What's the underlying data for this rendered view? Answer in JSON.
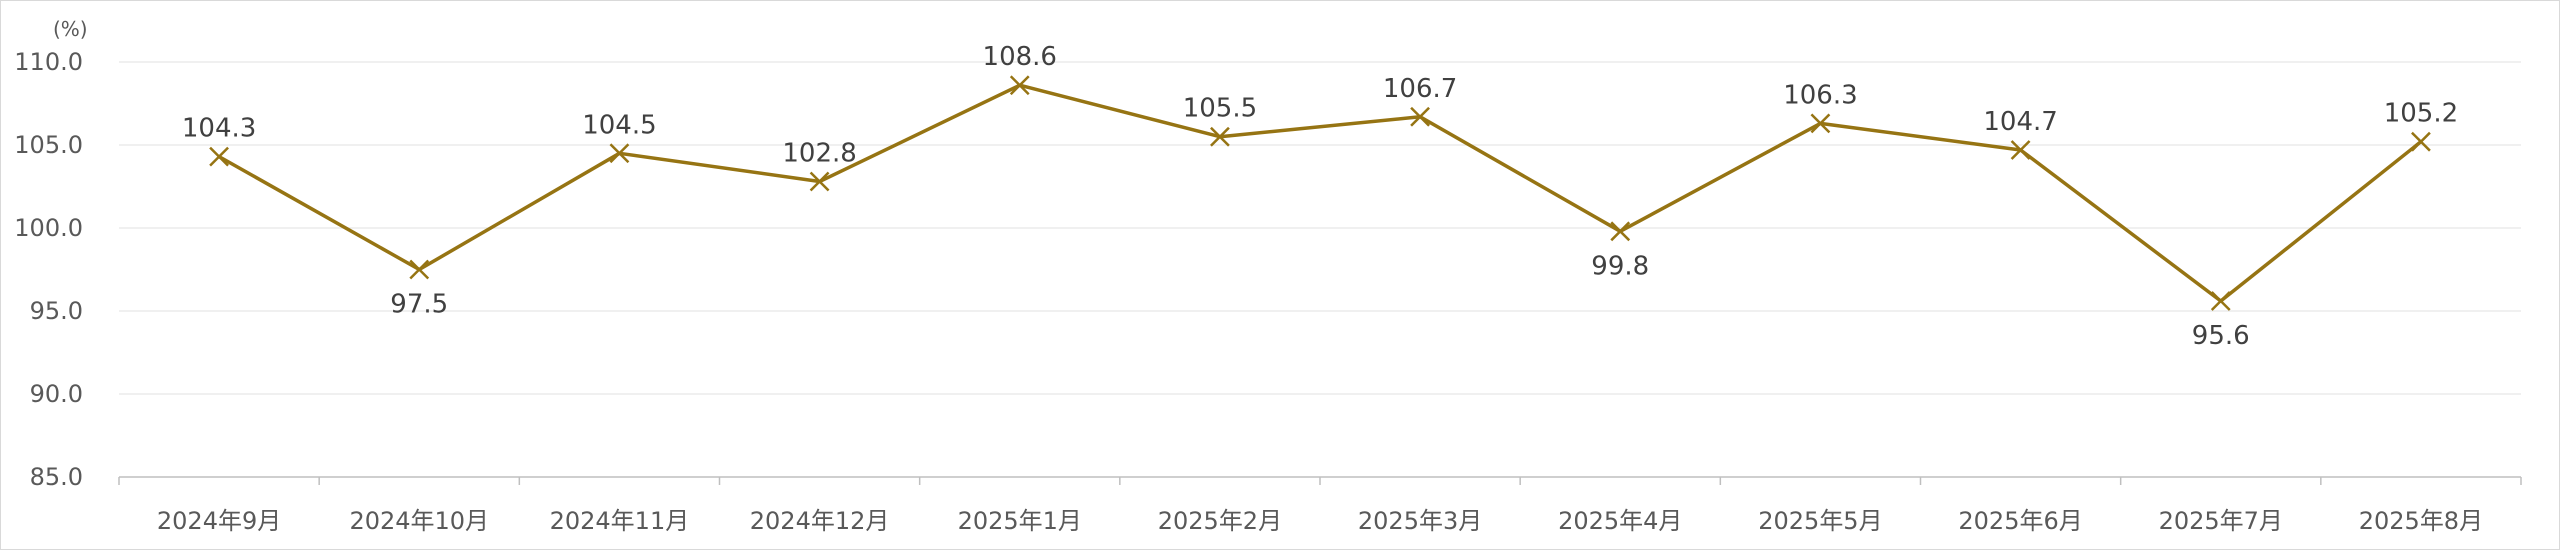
{
  "chart_data": {
    "type": "line",
    "title": "",
    "xlabel": "",
    "ylabel": "(%)",
    "ylim": [
      85.0,
      110.0
    ],
    "yticks": [
      "85.0",
      "90.0",
      "95.0",
      "100.0",
      "105.0",
      "110.0"
    ],
    "categories": [
      "2024年9月",
      "2024年10月",
      "2024年11月",
      "2024年12月",
      "2025年1月",
      "2025年2月",
      "2025年3月",
      "2025年4月",
      "2025年5月",
      "2025年6月",
      "2025年7月",
      "2025年8月"
    ],
    "series": [
      {
        "values": [
          104.3,
          97.5,
          104.5,
          102.8,
          108.6,
          105.5,
          106.7,
          99.8,
          106.3,
          104.7,
          95.6,
          105.2
        ],
        "labels": [
          "104.3",
          "97.5",
          "104.5",
          "102.8",
          "108.6",
          "105.5",
          "106.7",
          "99.8",
          "106.3",
          "104.7",
          "95.6",
          "105.2"
        ],
        "label_position": [
          "above",
          "below",
          "above",
          "above",
          "above",
          "above",
          "above",
          "below",
          "above",
          "above",
          "below",
          "above"
        ],
        "color": "#967413",
        "marker": "x"
      }
    ],
    "grid": true,
    "legend": "none"
  }
}
